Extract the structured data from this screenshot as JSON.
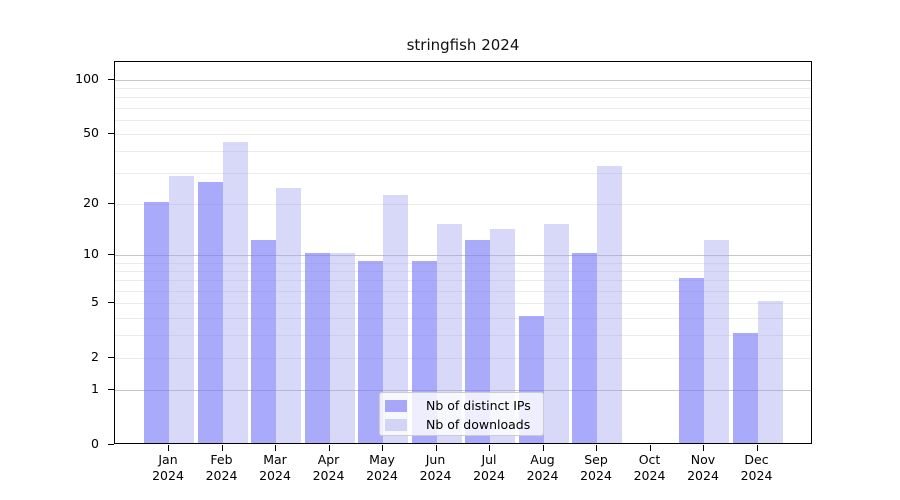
{
  "title": "stringfish 2024",
  "chart_data": {
    "type": "bar",
    "title": "stringfish 2024",
    "categories": [
      "Jan",
      "Feb",
      "Mar",
      "Apr",
      "May",
      "Jun",
      "Jul",
      "Aug",
      "Sep",
      "Oct",
      "Nov",
      "Dec"
    ],
    "year_label": "2024",
    "series": [
      {
        "name": "Nb of distinct IPs",
        "color": "#7c7cf7",
        "alpha": 0.65,
        "values": [
          20,
          26,
          12,
          10,
          9,
          9,
          12,
          4,
          10,
          0,
          7,
          3
        ]
      },
      {
        "name": "Nb of downloads",
        "color": "#9e9ef0",
        "alpha": 0.4,
        "values": [
          28,
          44,
          24,
          10,
          22,
          15,
          14,
          15,
          32,
          0,
          12,
          5
        ]
      }
    ],
    "yscale": "log1p",
    "ylim": [
      0,
      126
    ],
    "yticks": [
      0,
      1,
      2,
      5,
      10,
      20,
      50,
      100
    ],
    "major_gridlines": [
      1,
      10,
      100
    ],
    "minor_gridlines": [
      2,
      3,
      4,
      5,
      6,
      7,
      8,
      9,
      20,
      30,
      40,
      50,
      60,
      70,
      80,
      90
    ],
    "grid_colors": {
      "major": "#c6c6c6",
      "minor": "#ebebeb"
    },
    "axis_color": "#000000",
    "legend": {
      "position": "lower center",
      "entries": [
        "Nb of distinct IPs",
        "Nb of downloads"
      ]
    }
  }
}
